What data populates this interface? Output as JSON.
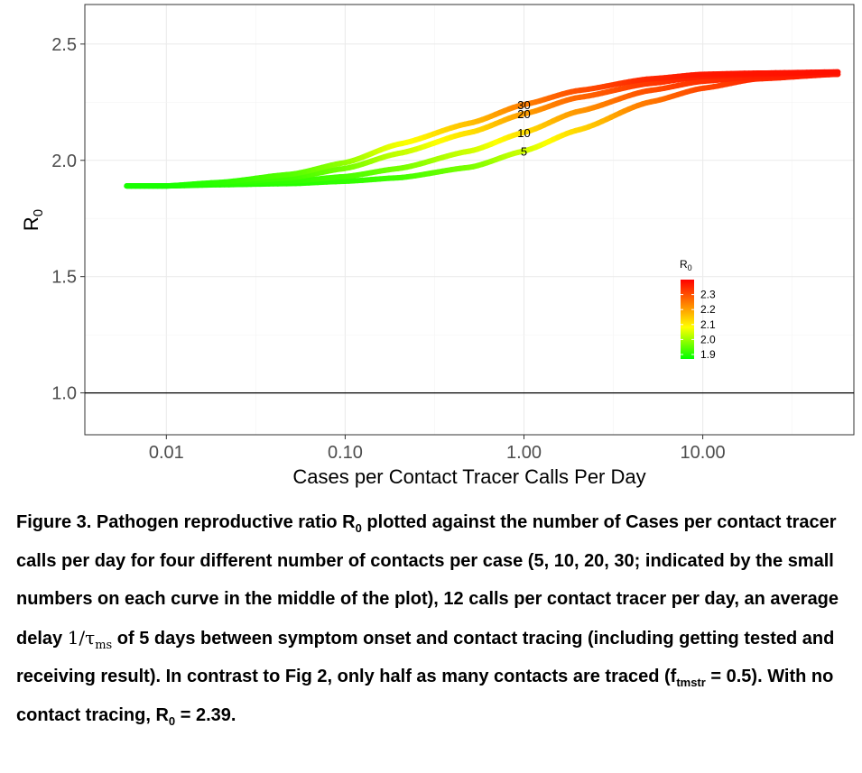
{
  "chart_data": {
    "type": "line",
    "xlabel": "Cases per Contact Tracer Calls Per Day",
    "ylabel": "R",
    "ylabel_sub": "0",
    "x_scale": "log10",
    "xlim": [
      0.0035,
      70
    ],
    "ylim": [
      0.82,
      2.67
    ],
    "x_ticks": [
      0.01,
      0.1,
      1,
      10
    ],
    "x_tick_labels": [
      "0.01",
      "0.10",
      "1.00",
      "10.00"
    ],
    "y_ticks": [
      1.0,
      1.5,
      2.0,
      2.5
    ],
    "y_tick_labels": [
      "1.0",
      "1.5",
      "2.0",
      "2.5"
    ],
    "grid": true,
    "reference_line_y": 1.0,
    "series": [
      {
        "label": "5",
        "x": [
          0.006,
          0.01,
          0.02,
          0.05,
          0.1,
          0.2,
          0.5,
          1,
          2,
          5,
          10,
          20,
          57
        ],
        "y": [
          1.89,
          1.89,
          1.895,
          1.9,
          1.91,
          1.925,
          1.97,
          2.04,
          2.13,
          2.25,
          2.31,
          2.35,
          2.37
        ]
      },
      {
        "label": "10",
        "x": [
          0.006,
          0.01,
          0.02,
          0.05,
          0.1,
          0.2,
          0.5,
          1,
          2,
          5,
          10,
          20,
          57
        ],
        "y": [
          1.89,
          1.89,
          1.9,
          1.91,
          1.93,
          1.965,
          2.04,
          2.12,
          2.21,
          2.3,
          2.34,
          2.36,
          2.37
        ]
      },
      {
        "label": "20",
        "x": [
          0.006,
          0.01,
          0.02,
          0.05,
          0.1,
          0.2,
          0.5,
          1,
          2,
          5,
          10,
          20,
          57
        ],
        "y": [
          1.89,
          1.89,
          1.9,
          1.925,
          1.965,
          2.03,
          2.12,
          2.2,
          2.27,
          2.33,
          2.36,
          2.37,
          2.38
        ]
      },
      {
        "label": "30",
        "x": [
          0.006,
          0.01,
          0.02,
          0.05,
          0.1,
          0.2,
          0.5,
          1,
          2,
          5,
          10,
          20,
          57
        ],
        "y": [
          1.89,
          1.89,
          1.905,
          1.94,
          1.99,
          2.07,
          2.16,
          2.24,
          2.3,
          2.35,
          2.37,
          2.375,
          2.38
        ]
      }
    ],
    "curve_label_x": 1,
    "legend": {
      "title": "R",
      "title_sub": "0",
      "placement": "bottom-right",
      "labels": [
        "2.3",
        "2.2",
        "2.1",
        "2.0",
        "1.9"
      ],
      "values": [
        2.3,
        2.2,
        2.1,
        2.0,
        1.9
      ],
      "range": [
        1.87,
        2.4
      ]
    },
    "colorscale": [
      "#00ff00",
      "#ffff00",
      "#ff0000"
    ]
  },
  "caption": {
    "p1": "Figure 3. Pathogen reproductive ratio R",
    "s1": "0",
    "p2": " plotted against the number of Cases per contact tracer calls per day for four different number of contacts per case (5, 10, 20, 30; indicated by the small numbers on each curve in the middle of the plot), 12 calls per contact tracer per day, an average delay ",
    "tau": "1/τ",
    "tau_sub": "ms",
    "p3": " of 5 days between symptom onset and contact tracing (including getting tested and receiving result). In contrast to Fig 2, only half as many contacts are traced (f",
    "s2": "tmstr",
    "p4": " = 0.5). With no contact tracing, R",
    "s3": "0",
    "p5": " = 2.39."
  }
}
